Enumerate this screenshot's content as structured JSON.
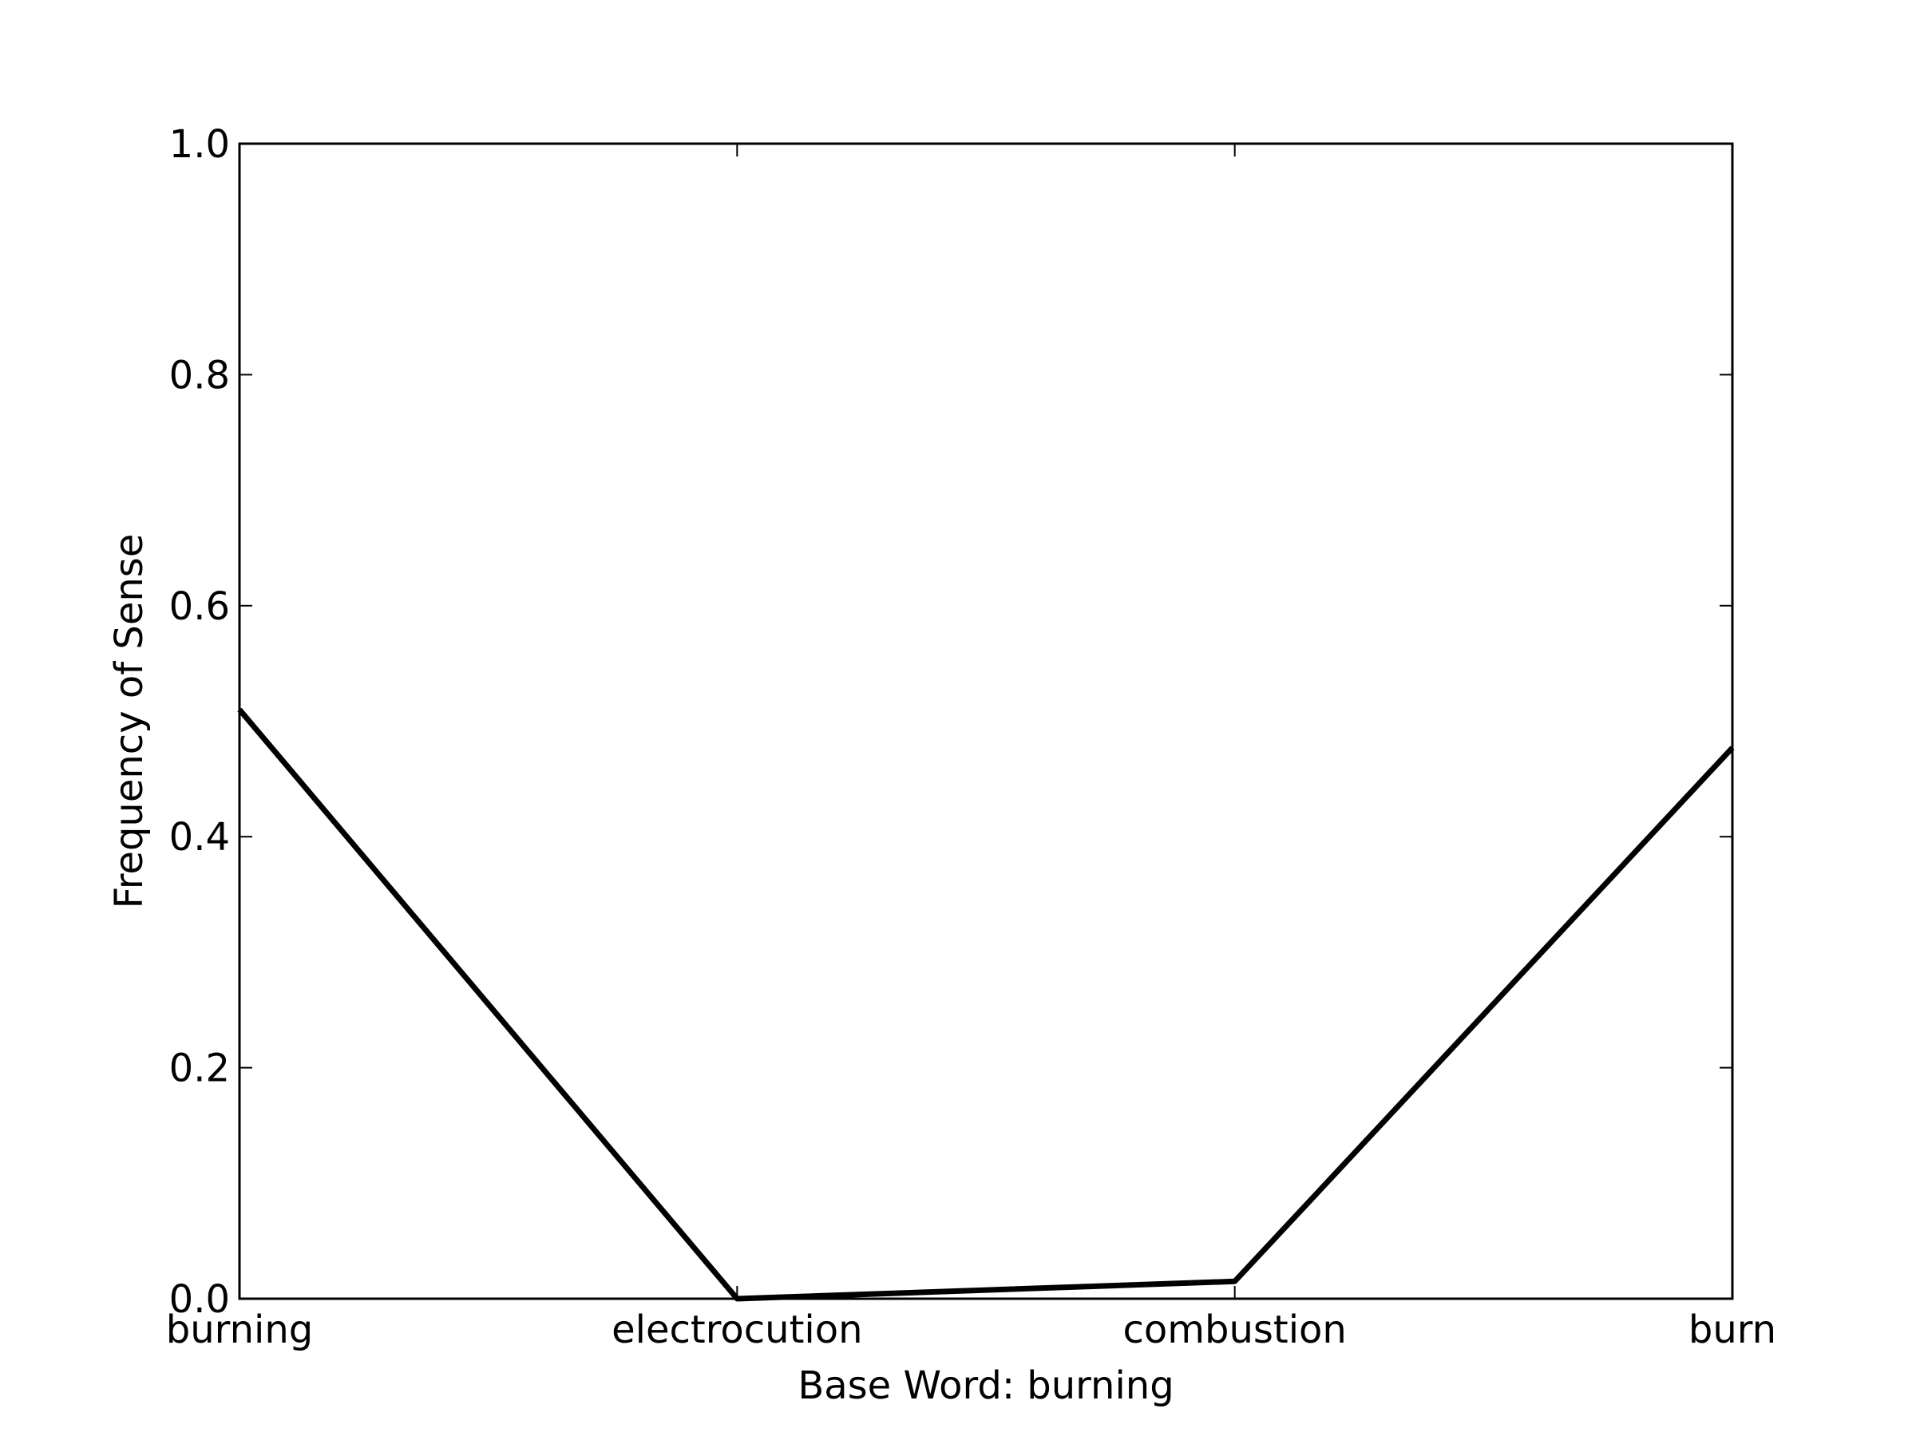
{
  "chart_data": {
    "type": "line",
    "title": "",
    "xlabel": "Base Word: burning",
    "ylabel": "Frequency of Sense",
    "categories": [
      "burning",
      "electrocution",
      "combustion",
      "burn"
    ],
    "series": [
      {
        "values": [
          0.51,
          0.0,
          0.015,
          0.477
        ],
        "color": "#000000"
      }
    ],
    "ylim": [
      0.0,
      1.0
    ],
    "yticks": [
      "0.0",
      "0.2",
      "0.4",
      "0.6",
      "0.8",
      "1.0"
    ],
    "grid": false,
    "legend": "none"
  }
}
